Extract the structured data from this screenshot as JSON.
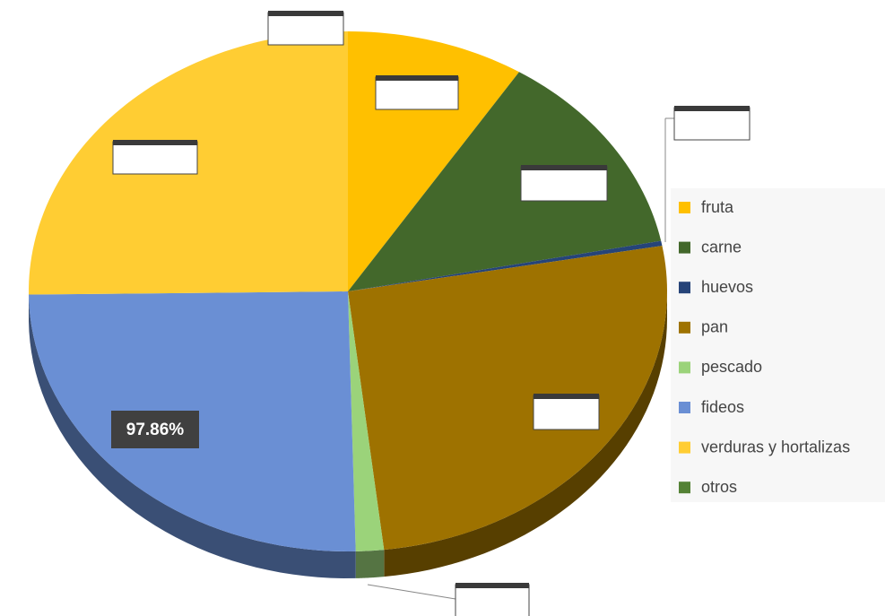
{
  "chart_data": {
    "type": "pie",
    "categories": [
      "fruta",
      "carne",
      "huevos",
      "pan",
      "pescado",
      "fideos",
      "verduras y hortalizas",
      "otros"
    ],
    "values": [
      35,
      50,
      1.2,
      101,
      5.5,
      97.86,
      97.86,
      0
    ],
    "value_labels": [
      null,
      null,
      null,
      null,
      null,
      "97.86%",
      null,
      null
    ],
    "colors": [
      "#ffc000",
      "#43682b",
      "#264478",
      "#9e7200",
      "#9bd37a",
      "#6a8fd4",
      "#ffcd33",
      "#548235"
    ],
    "legend": "right"
  }
}
